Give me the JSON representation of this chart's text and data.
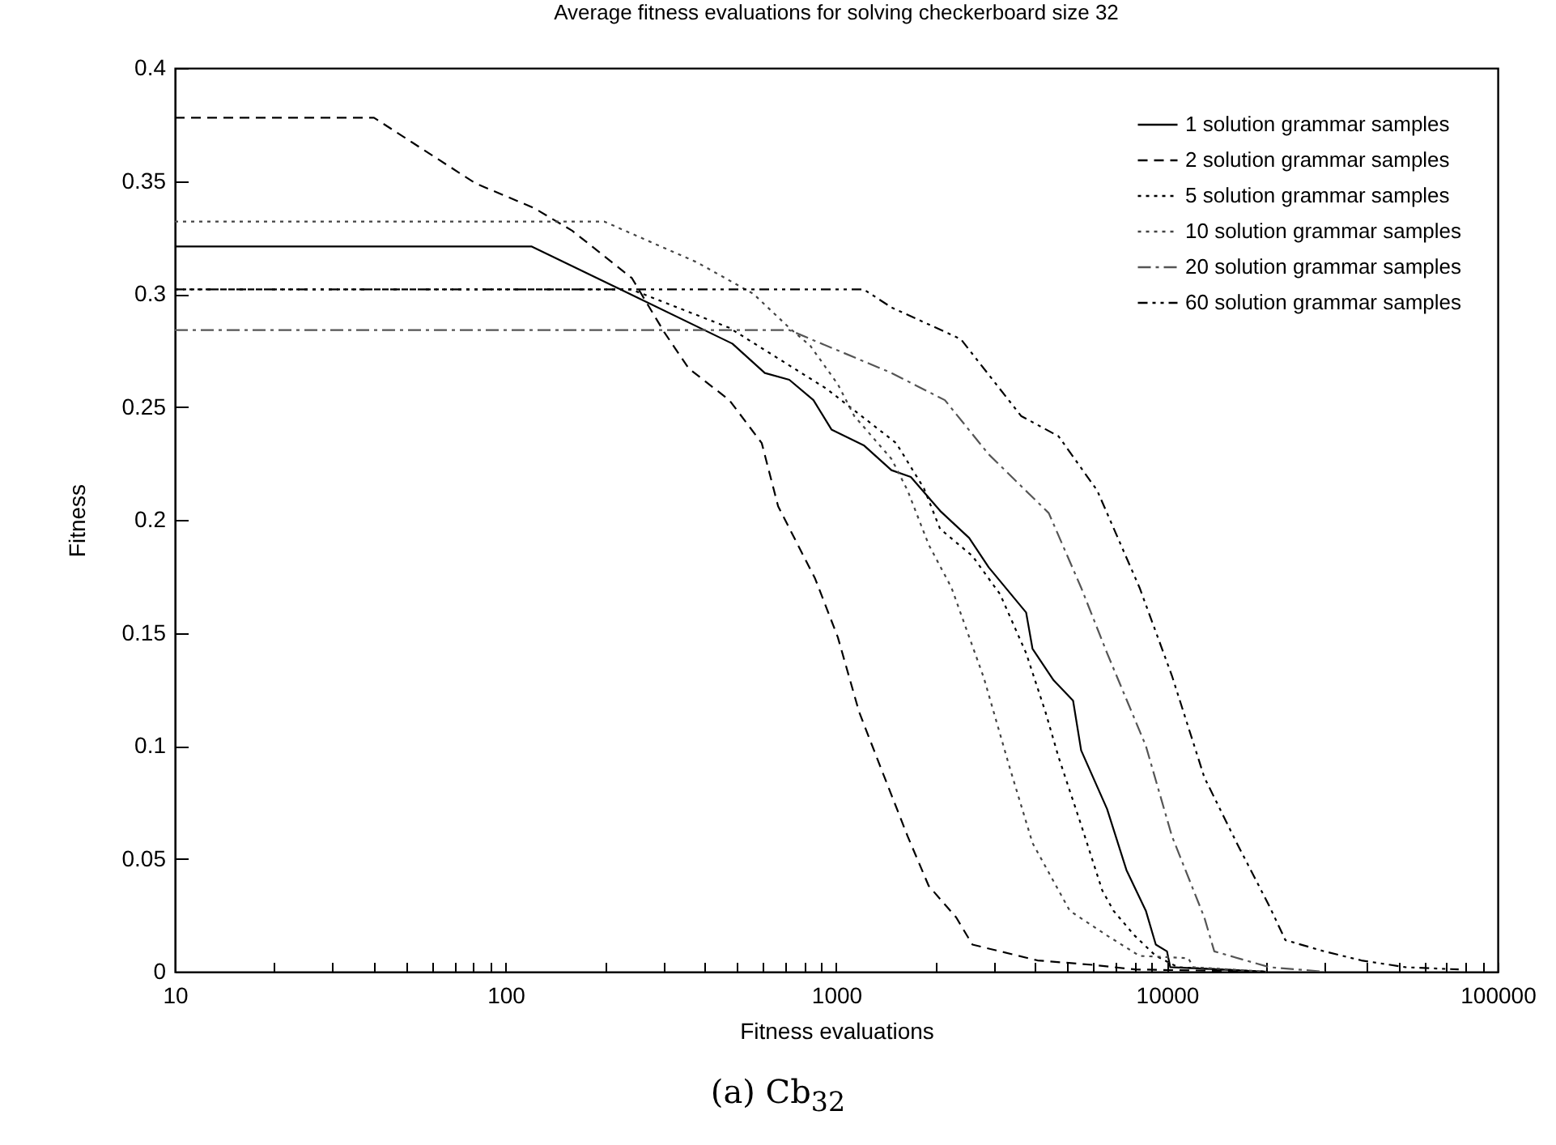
{
  "chart_data": {
    "type": "line",
    "title": "Average fitness evaluations for solving checkerboard size 32",
    "xlabel": "Fitness evaluations",
    "ylabel": "Fitness",
    "log": "x",
    "legend": "top right",
    "grid": false,
    "marker": "none",
    "xlim": [
      10,
      100000
    ],
    "ylim": [
      0,
      0.4
    ],
    "xticks": [
      10,
      {
        "value": 20,
        "label": null
      },
      {
        "value": 30,
        "label": null
      },
      {
        "value": 40,
        "label": null
      },
      {
        "value": 50,
        "label": null
      },
      {
        "value": 60,
        "label": null
      },
      {
        "value": 70,
        "label": null
      },
      {
        "value": 80,
        "label": null
      },
      {
        "value": 90,
        "label": null
      },
      100,
      {
        "value": 200,
        "label": null
      },
      {
        "value": 300,
        "label": null
      },
      {
        "value": 400,
        "label": null
      },
      {
        "value": 500,
        "label": null
      },
      {
        "value": 600,
        "label": null
      },
      {
        "value": 700,
        "label": null
      },
      {
        "value": 800,
        "label": null
      },
      {
        "value": 900,
        "label": null
      },
      1000,
      {
        "value": 2000,
        "label": null
      },
      {
        "value": 3000,
        "label": null
      },
      {
        "value": 4000,
        "label": null
      },
      {
        "value": 5000,
        "label": null
      },
      {
        "value": 6000,
        "label": null
      },
      {
        "value": 7000,
        "label": null
      },
      {
        "value": 8000,
        "label": null
      },
      {
        "value": 9000,
        "label": null
      },
      10000,
      {
        "value": 20000,
        "label": null
      },
      {
        "value": 30000,
        "label": null
      },
      {
        "value": 40000,
        "label": null
      },
      {
        "value": 50000,
        "label": null
      },
      {
        "value": 60000,
        "label": null
      },
      {
        "value": 70000,
        "label": null
      },
      {
        "value": 80000,
        "label": null
      },
      {
        "value": 90000,
        "label": null
      },
      100000
    ],
    "yticks": [
      0,
      0.05,
      0.1,
      0.15,
      0.2,
      0.25,
      0.3,
      0.35,
      0.4
    ],
    "annotations": [
      "(a) Cb$_{32}$"
    ],
    "series": [
      {
        "name": "1 solution grammar samples",
        "color": "#000000",
        "line_style": "solid",
        "x": [
          10,
          120,
          485,
          608,
          721,
          853,
          967,
          1211,
          1468,
          1680,
          2060,
          2523,
          2890,
          3750,
          3920,
          4540,
          5200,
          5500,
          6590,
          7540,
          8630,
          9250,
          10000,
          10230,
          20000
        ],
        "values": [
          0.321,
          0.321,
          0.278,
          0.265,
          0.262,
          0.253,
          0.24,
          0.233,
          0.222,
          0.219,
          0.204,
          0.192,
          0.179,
          0.159,
          0.143,
          0.129,
          0.12,
          0.098,
          0.072,
          0.045,
          0.027,
          0.012,
          0.009,
          0.002,
          0
        ]
      },
      {
        "name": "2 solution grammar samples",
        "color": "#000000",
        "line_style": "dashed",
        "x": [
          10,
          40,
          81,
          122,
          159,
          241,
          302,
          358,
          475,
          595,
          667,
          863,
          1011,
          1172,
          1357,
          1643,
          1903,
          2305,
          2580,
          3130,
          4060,
          6000,
          8000,
          20000
        ],
        "values": [
          0.378,
          0.378,
          0.349,
          0.338,
          0.328,
          0.307,
          0.283,
          0.267,
          0.253,
          0.234,
          0.206,
          0.174,
          0.148,
          0.115,
          0.091,
          0.06,
          0.038,
          0.024,
          0.012,
          0.009,
          0.005,
          0.003,
          0.001,
          0
        ]
      },
      {
        "name": "5 solution grammar samples",
        "color": "#000000",
        "line_style": "dotted",
        "x": [
          10,
          240,
          475,
          935,
          1517,
          1840,
          2060,
          2580,
          3130,
          3750,
          4290,
          4700,
          5500,
          6370,
          6890,
          7980,
          9250,
          10800,
          20000
        ],
        "values": [
          0.302,
          0.302,
          0.285,
          0.258,
          0.234,
          0.214,
          0.196,
          0.184,
          0.167,
          0.141,
          0.115,
          0.095,
          0.065,
          0.036,
          0.027,
          0.016,
          0.007,
          0.002,
          0
        ]
      },
      {
        "name": "10 solution grammar samples",
        "color": "#444444",
        "line_style": "dotted",
        "x": [
          10,
          199,
          379,
          562,
          721,
          835,
          1011,
          1133,
          1468,
          1643,
          1903,
          2230,
          2795,
          3350,
          3920,
          5080,
          6590,
          8260,
          11600,
          12000,
          20000
        ],
        "values": [
          0.332,
          0.332,
          0.314,
          0.3,
          0.285,
          0.277,
          0.26,
          0.246,
          0.227,
          0.213,
          0.189,
          0.17,
          0.13,
          0.09,
          0.057,
          0.027,
          0.016,
          0.007,
          0.006,
          0.002,
          0
        ]
      },
      {
        "name": "20 solution grammar samples",
        "color": "#555555",
        "line_style": "dashdot",
        "x": [
          10,
          721,
          1470,
          2130,
          2890,
          4390,
          5500,
          6590,
          8630,
          10350,
          12970,
          13900,
          20400,
          30000
        ],
        "values": [
          0.284,
          0.284,
          0.265,
          0.253,
          0.229,
          0.203,
          0.17,
          0.141,
          0.1,
          0.06,
          0.024,
          0.009,
          0.002,
          0
        ]
      },
      {
        "name": "60 solution grammar samples",
        "color": "#000000",
        "line_style": "dashdotdot",
        "x": [
          10,
          1211,
          1470,
          2380,
          3620,
          4700,
          6150,
          8260,
          10350,
          12970,
          16250,
          20400,
          22800,
          29900,
          38700,
          52600,
          76200
        ],
        "values": [
          0.302,
          0.302,
          0.294,
          0.28,
          0.246,
          0.237,
          0.213,
          0.17,
          0.131,
          0.086,
          0.057,
          0.029,
          0.014,
          0.009,
          0.005,
          0.002,
          0.001
        ]
      }
    ]
  }
}
